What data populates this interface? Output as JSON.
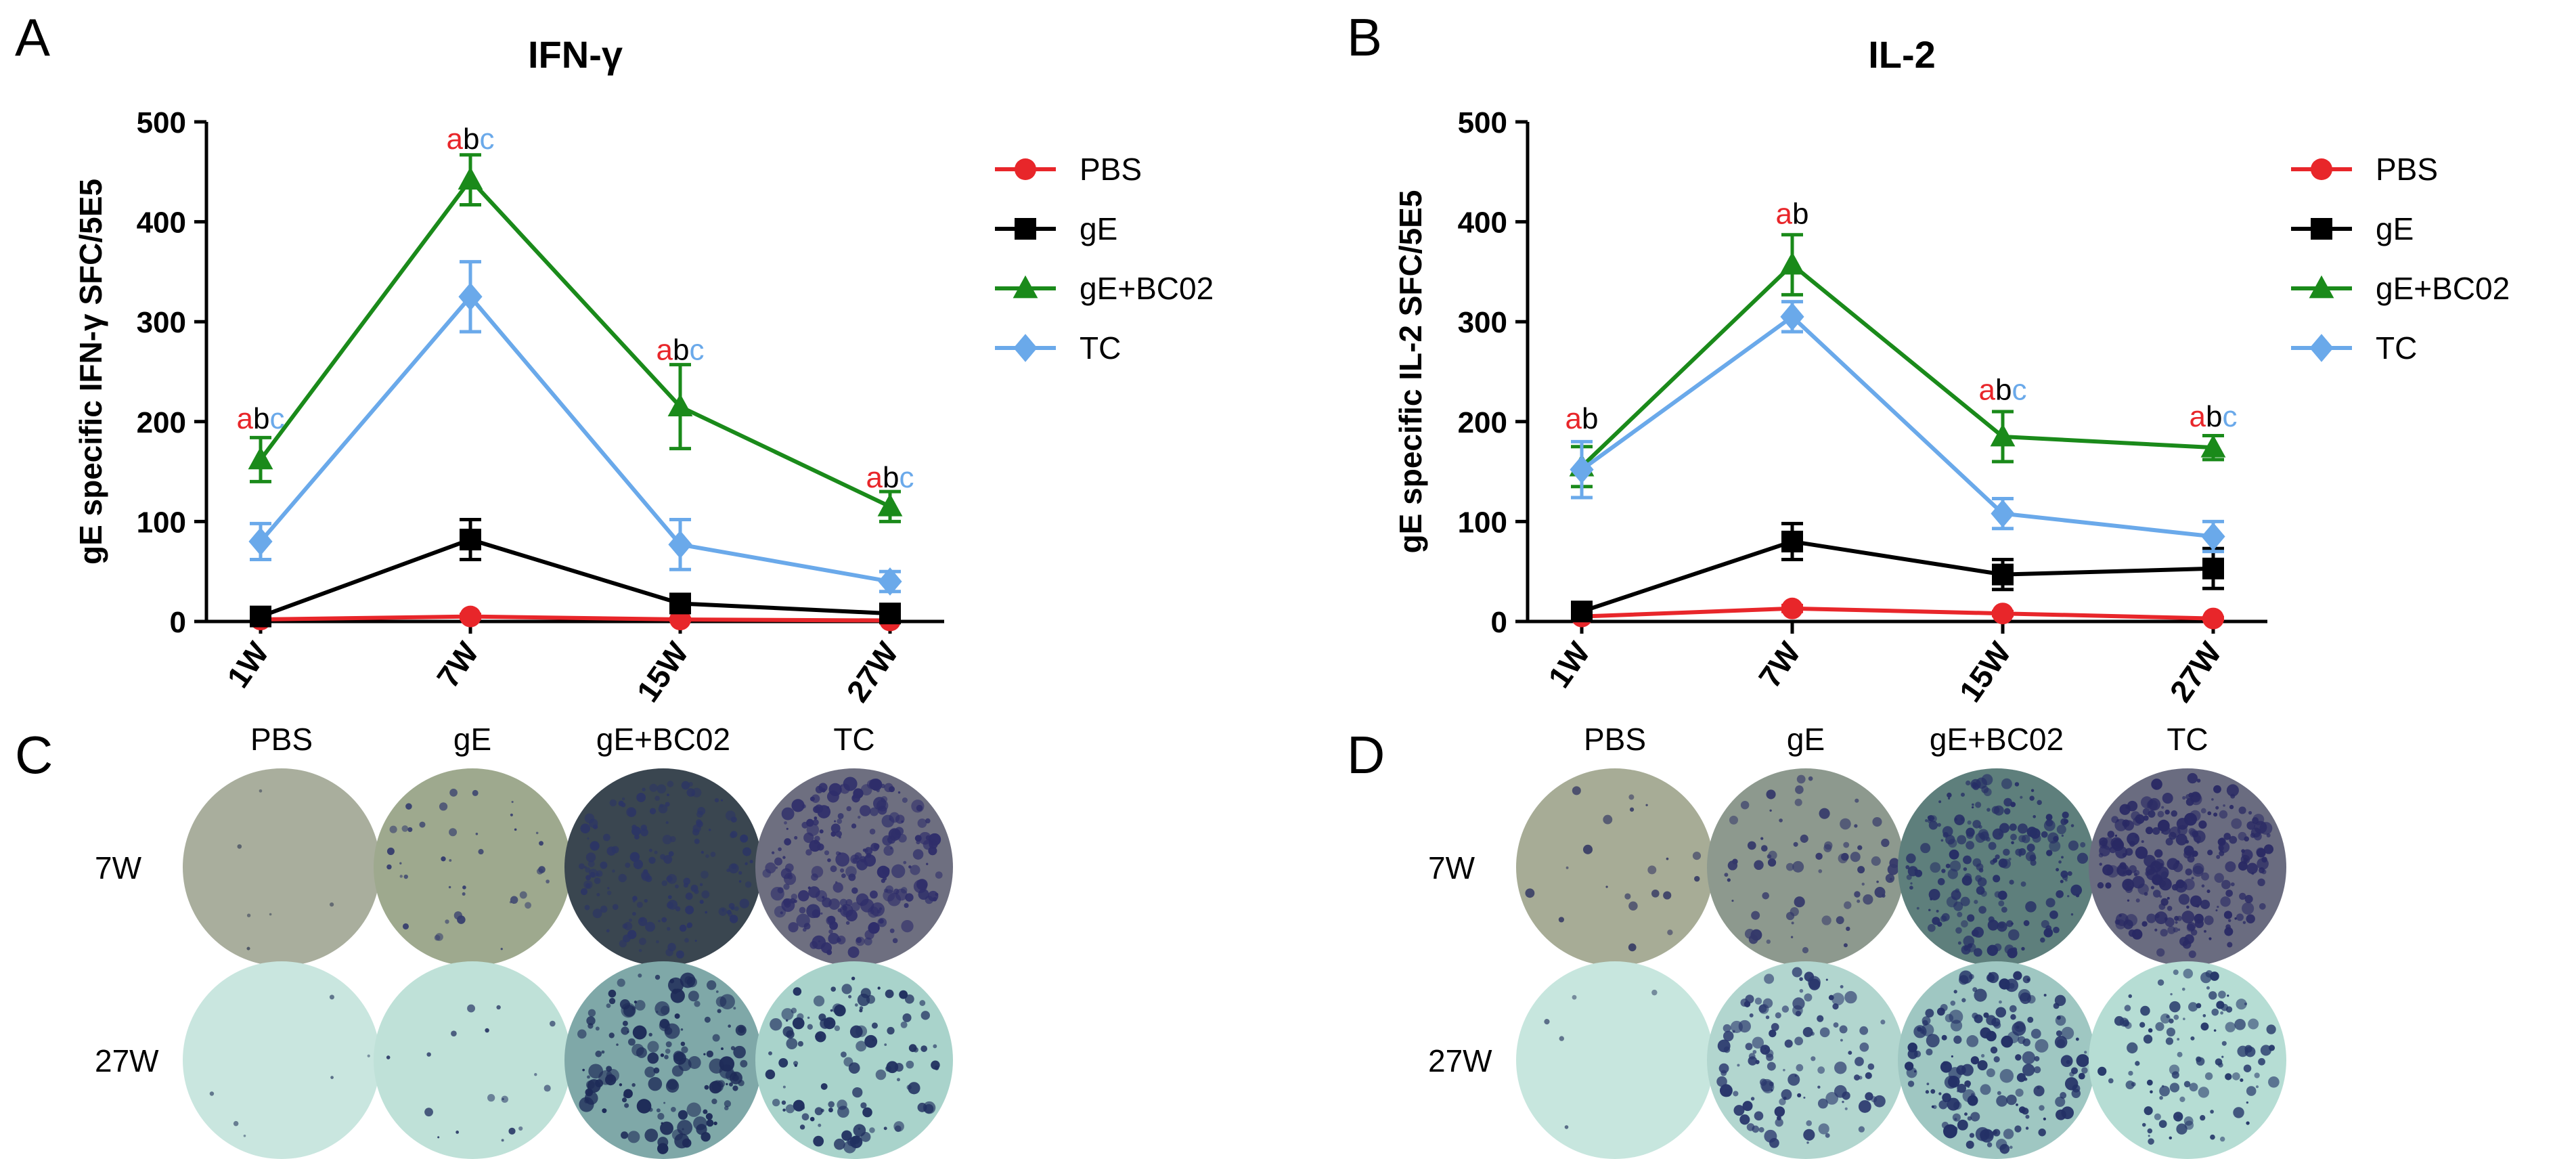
{
  "panels": {
    "A": "A",
    "B": "B",
    "C": "C",
    "D": "D"
  },
  "colors": {
    "PBS": "#e8262a",
    "gE": "#000000",
    "gE+BC02": "#1a8a1a",
    "TC": "#6aa9ea",
    "sig_a": "#e8262a",
    "sig_b": "#000000",
    "sig_c": "#6aa9ea"
  },
  "chart_data": [
    {
      "type": "line",
      "title": "IFN-γ",
      "ylabel": "gE specific IFN-γ SFC/5E5",
      "xlabel": "",
      "categories": [
        "1W",
        "7W",
        "15W",
        "27W"
      ],
      "ylim": [
        0,
        500
      ],
      "yticks": [
        "0",
        "100",
        "200",
        "300",
        "400",
        "500"
      ],
      "legend_position": "right",
      "series": [
        {
          "name": "PBS",
          "marker": "circle",
          "values": [
            2,
            5,
            2,
            1
          ],
          "err": [
            1,
            2,
            1,
            1
          ]
        },
        {
          "name": "gE",
          "marker": "square",
          "values": [
            5,
            82,
            18,
            8
          ],
          "err": [
            3,
            20,
            5,
            4
          ]
        },
        {
          "name": "gE+BC02",
          "marker": "triangle",
          "values": [
            162,
            442,
            215,
            115
          ],
          "err": [
            22,
            25,
            42,
            15
          ]
        },
        {
          "name": "TC",
          "marker": "diamond",
          "values": [
            80,
            325,
            77,
            40
          ],
          "err": [
            18,
            35,
            25,
            10
          ]
        }
      ],
      "annotations": [
        {
          "category": "1W",
          "y": 193,
          "letters": [
            "a",
            "b",
            "c"
          ]
        },
        {
          "category": "7W",
          "y": 473,
          "letters": [
            "a",
            "b",
            "c"
          ]
        },
        {
          "category": "15W",
          "y": 262,
          "letters": [
            "a",
            "b",
            "c"
          ]
        },
        {
          "category": "27W",
          "y": 134,
          "letters": [
            "a",
            "b",
            "c"
          ]
        }
      ]
    },
    {
      "type": "line",
      "title": "IL-2",
      "ylabel": "gE specific IL-2 SFC/5E5",
      "xlabel": "",
      "categories": [
        "1W",
        "7W",
        "15W",
        "27W"
      ],
      "ylim": [
        0,
        500
      ],
      "yticks": [
        "0",
        "100",
        "200",
        "300",
        "400",
        "500"
      ],
      "legend_position": "right",
      "series": [
        {
          "name": "PBS",
          "marker": "circle",
          "values": [
            5,
            13,
            8,
            3
          ],
          "err": [
            2,
            3,
            2,
            1
          ]
        },
        {
          "name": "gE",
          "marker": "square",
          "values": [
            10,
            80,
            47,
            53
          ],
          "err": [
            4,
            18,
            15,
            20
          ]
        },
        {
          "name": "gE+BC02",
          "marker": "triangle",
          "values": [
            155,
            357,
            185,
            174
          ],
          "err": [
            20,
            30,
            25,
            12
          ]
        },
        {
          "name": "TC",
          "marker": "diamond",
          "values": [
            152,
            305,
            108,
            85
          ],
          "err": [
            28,
            15,
            15,
            15
          ]
        }
      ],
      "annotations": [
        {
          "category": "1W",
          "y": 193,
          "letters": [
            "a",
            "b"
          ]
        },
        {
          "category": "7W",
          "y": 398,
          "letters": [
            "a",
            "b"
          ]
        },
        {
          "category": "15W",
          "y": 222,
          "letters": [
            "a",
            "b",
            "c"
          ]
        },
        {
          "category": "27W",
          "y": 195,
          "letters": [
            "a",
            "b",
            "c"
          ]
        }
      ]
    }
  ],
  "wells_C": {
    "columns": [
      "PBS",
      "gE",
      "gE+BC02",
      "TC"
    ],
    "rows": [
      "7W",
      "27W"
    ]
  },
  "wells_D": {
    "columns": [
      "PBS",
      "gE",
      "gE+BC02",
      "TC"
    ],
    "rows": [
      "7W",
      "27W"
    ]
  }
}
